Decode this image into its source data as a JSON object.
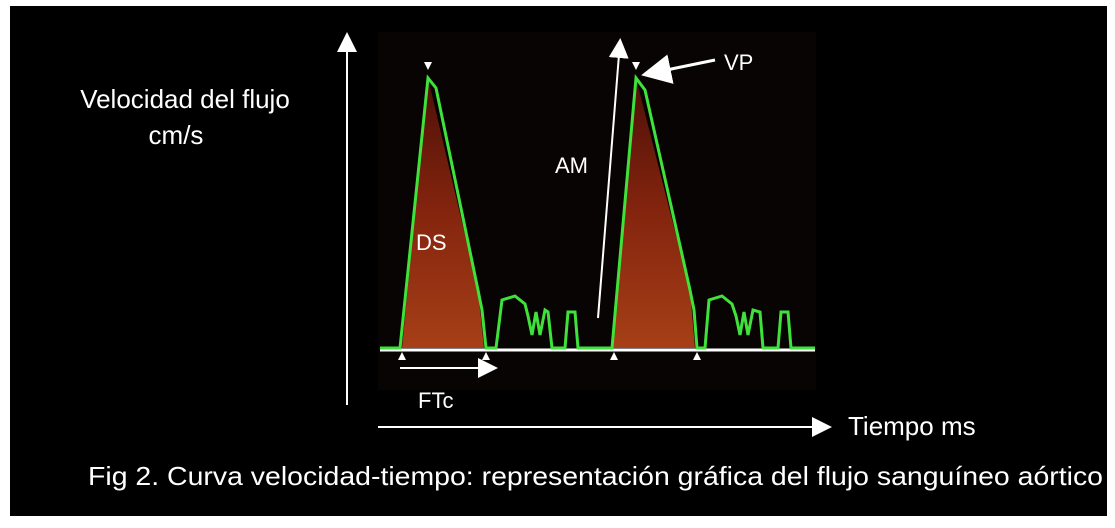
{
  "figure": {
    "y_axis_label": {
      "line1": "Velocidad del flujo",
      "line2": "cm/s"
    },
    "x_axis_label": "Tiempo ms",
    "annotations": {
      "peak_velocity": "VP",
      "amplitude": "AM",
      "systolic_distance": "DS",
      "corrected_flow_time": "FTc"
    },
    "caption": "Fig 2. Curva velocidad-tiempo: representación gráfica del flujo sanguíneo aórtico"
  }
}
